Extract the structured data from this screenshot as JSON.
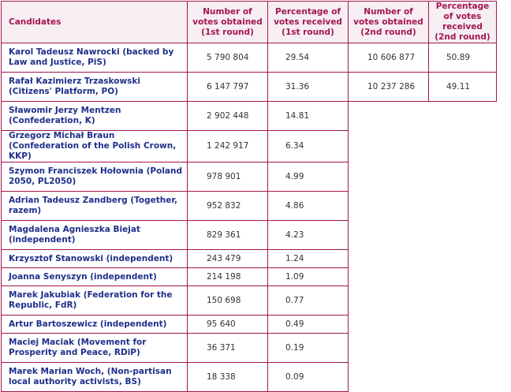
{
  "headers": {
    "candidates": "Candidates",
    "votes_r1": "Number of votes obtained (1st round)",
    "pct_r1": "Percentage of votes received (1st round)",
    "votes_r2": "Number of votes obtained (2nd round)",
    "pct_r2": "Percentage of votes received (2nd round)"
  },
  "rows": [
    {
      "name": "Karol Tadeusz Nawrocki (backed by Law and Justice, PiS)",
      "votes_r1": "5 790 804",
      "pct_r1": "29.54",
      "votes_r2": "10 606 877",
      "pct_r2": "50.89"
    },
    {
      "name": "Rafał Kazimierz Trzaskowski (Citizens' Platform, PO)",
      "votes_r1": "6 147 797",
      "pct_r1": "31.36",
      "votes_r2": "10 237 286",
      "pct_r2": "49.11"
    },
    {
      "name": "Sławomir Jerzy Mentzen (Confederation, K)",
      "votes_r1": "2 902 448",
      "pct_r1": "14.81"
    },
    {
      "name": "Grzegorz Michał Braun (Confederation of the Polish Crown, KKP)",
      "votes_r1": "1 242 917",
      "pct_r1": "6.34"
    },
    {
      "name": "Szymon Franciszek Hołownia (Poland 2050, PL2050)",
      "votes_r1": "978 901",
      "pct_r1": "4.99"
    },
    {
      "name": "Adrian Tadeusz Zandberg (Together, razem)",
      "votes_r1": "952 832",
      "pct_r1": "4.86"
    },
    {
      "name": "Magdalena Agnieszka Biejat (independent)",
      "votes_r1": "829 361",
      "pct_r1": "4.23"
    },
    {
      "name": "Krzysztof Stanowski (independent)",
      "votes_r1": "243 479",
      "pct_r1": "1.24"
    },
    {
      "name": "Joanna Senyszyn (independent)",
      "votes_r1": "214 198",
      "pct_r1": "1.09"
    },
    {
      "name": "Marek Jakubiak (Federation for the Republic, FdR)",
      "votes_r1": "150 698",
      "pct_r1": "0.77"
    },
    {
      "name": "Artur Bartoszewicz (independent)",
      "votes_r1": "95 640",
      "pct_r1": "0.49"
    },
    {
      "name": "Maciej Maciak (Movement for Prosperity and Peace, RDiP)",
      "votes_r1": "36 371",
      "pct_r1": "0.19"
    },
    {
      "name": "Marek Marian Woch, (Non-partisan local authority activists, BS)",
      "votes_r1": "18 338",
      "pct_r1": "0.09"
    }
  ]
}
